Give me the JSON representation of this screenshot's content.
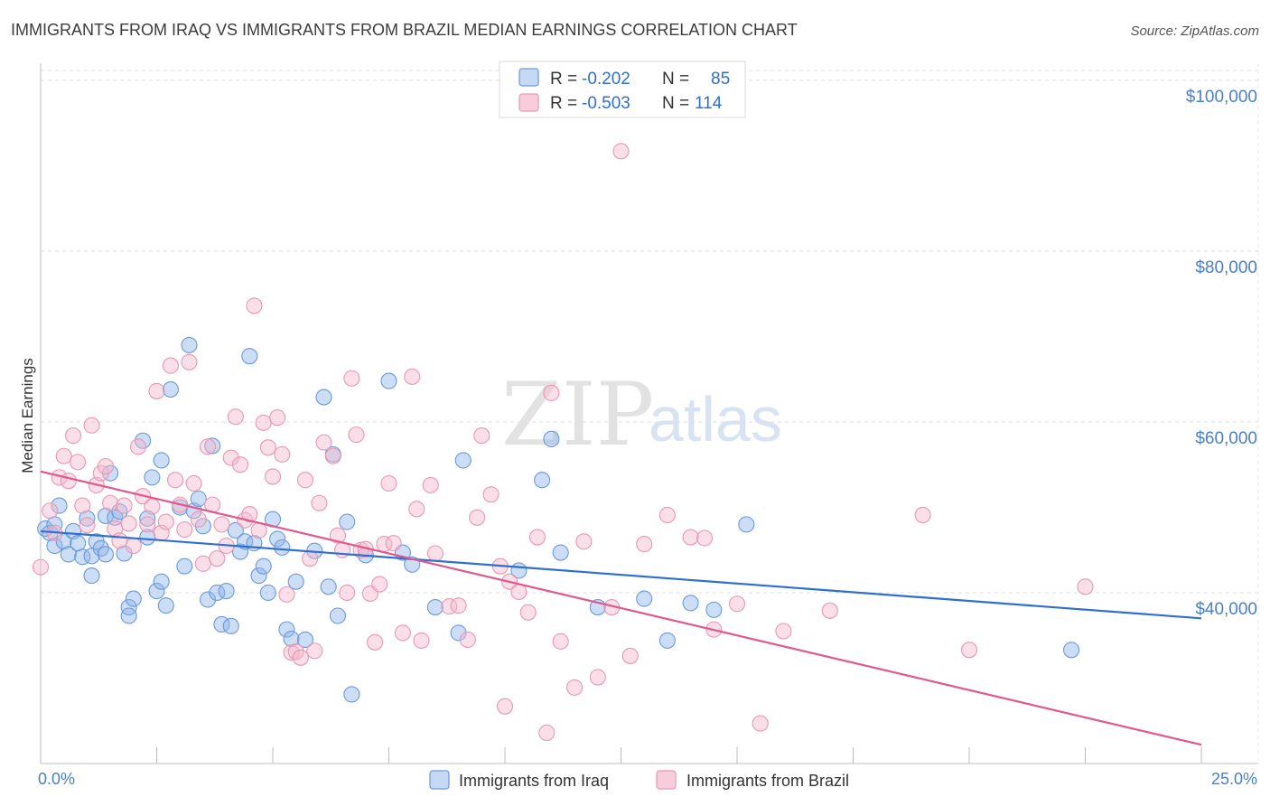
{
  "chart_data": {
    "type": "scatter",
    "title": "IMMIGRANTS FROM IRAQ VS IMMIGRANTS FROM BRAZIL MEDIAN EARNINGS CORRELATION CHART",
    "source": "Source: ZipAtlas.com",
    "watermark": {
      "part1": "ZIP",
      "part2": "atlas"
    },
    "ylabel": "Median Earnings",
    "xlim": [
      0,
      25
    ],
    "ylim": [
      20000,
      102000
    ],
    "x_tick_labels": [
      "0.0%",
      "25.0%"
    ],
    "y_ticks": [
      {
        "value": 40000,
        "label": "$40,000"
      },
      {
        "value": 60000,
        "label": "$60,000"
      },
      {
        "value": 80000,
        "label": "$80,000"
      },
      {
        "value": 100000,
        "label": "$100,000"
      }
    ],
    "legend": {
      "rows": [
        {
          "r_label": "R = ",
          "r_value": "-0.202",
          "n_label": "N = ",
          "n_value": "85"
        },
        {
          "r_label": "R = ",
          "r_value": "-0.503",
          "n_label": "N = ",
          "n_value": "114"
        }
      ]
    },
    "series": [
      {
        "name": "Immigrants from Iraq",
        "color": "#8fb4ea",
        "stroke": "#6c9ad8",
        "line_color": "#2f6fd0",
        "trend": {
          "x": [
            0,
            25
          ],
          "y": [
            47200,
            37000
          ]
        },
        "points": [
          [
            0.1,
            47500
          ],
          [
            0.2,
            47000
          ],
          [
            0.3,
            45500
          ],
          [
            0.3,
            48000
          ],
          [
            0.4,
            50200
          ],
          [
            0.5,
            46000
          ],
          [
            0.6,
            44500
          ],
          [
            0.7,
            47200
          ],
          [
            0.8,
            45800
          ],
          [
            0.9,
            44200
          ],
          [
            1.0,
            48700
          ],
          [
            1.1,
            44300
          ],
          [
            1.2,
            46000
          ],
          [
            1.3,
            45200
          ],
          [
            1.1,
            42000
          ],
          [
            1.4,
            44500
          ],
          [
            1.5,
            54000
          ],
          [
            1.4,
            49000
          ],
          [
            1.6,
            48800
          ],
          [
            1.7,
            49500
          ],
          [
            1.8,
            44600
          ],
          [
            1.9,
            38300
          ],
          [
            1.9,
            37300
          ],
          [
            2.0,
            39300
          ],
          [
            2.2,
            57800
          ],
          [
            2.3,
            48700
          ],
          [
            2.3,
            46500
          ],
          [
            2.4,
            53500
          ],
          [
            2.5,
            40200
          ],
          [
            2.6,
            41300
          ],
          [
            2.7,
            38500
          ],
          [
            2.6,
            55500
          ],
          [
            2.8,
            63800
          ],
          [
            3.0,
            50000
          ],
          [
            3.1,
            43100
          ],
          [
            3.2,
            69000
          ],
          [
            3.3,
            49600
          ],
          [
            3.4,
            51000
          ],
          [
            3.5,
            47800
          ],
          [
            3.6,
            39200
          ],
          [
            3.7,
            57200
          ],
          [
            3.8,
            40000
          ],
          [
            3.9,
            36300
          ],
          [
            4.0,
            40200
          ],
          [
            4.1,
            36100
          ],
          [
            4.2,
            47300
          ],
          [
            4.3,
            44800
          ],
          [
            4.4,
            46000
          ],
          [
            4.5,
            67700
          ],
          [
            4.6,
            45800
          ],
          [
            4.7,
            42000
          ],
          [
            4.8,
            43100
          ],
          [
            4.9,
            40000
          ],
          [
            5.0,
            48600
          ],
          [
            5.1,
            46300
          ],
          [
            5.2,
            45300
          ],
          [
            5.3,
            35700
          ],
          [
            5.4,
            34600
          ],
          [
            5.5,
            41300
          ],
          [
            5.7,
            34500
          ],
          [
            5.9,
            44900
          ],
          [
            6.1,
            62900
          ],
          [
            6.2,
            40700
          ],
          [
            6.3,
            56200
          ],
          [
            6.4,
            37300
          ],
          [
            6.6,
            48300
          ],
          [
            6.7,
            28100
          ],
          [
            7.0,
            44400
          ],
          [
            7.5,
            64800
          ],
          [
            7.8,
            44700
          ],
          [
            8.0,
            43300
          ],
          [
            8.5,
            38300
          ],
          [
            9.0,
            35300
          ],
          [
            9.1,
            55500
          ],
          [
            10.3,
            42600
          ],
          [
            10.8,
            53200
          ],
          [
            11.0,
            58000
          ],
          [
            11.2,
            44700
          ],
          [
            12.0,
            38300
          ],
          [
            13.0,
            39300
          ],
          [
            13.5,
            34400
          ],
          [
            14.0,
            38800
          ],
          [
            14.5,
            38000
          ],
          [
            15.2,
            48000
          ],
          [
            22.2,
            33300
          ]
        ]
      },
      {
        "name": "Immigrants from Brazil",
        "color": "#f5b8cc",
        "stroke": "#e897b2",
        "line_color": "#e0588c",
        "trend": {
          "x": [
            0,
            25
          ],
          "y": [
            54200,
            22200
          ]
        },
        "points": [
          [
            0.0,
            43000
          ],
          [
            0.2,
            49600
          ],
          [
            0.3,
            47000
          ],
          [
            0.4,
            53500
          ],
          [
            0.5,
            56000
          ],
          [
            0.6,
            53100
          ],
          [
            0.7,
            58400
          ],
          [
            0.8,
            55300
          ],
          [
            0.9,
            50200
          ],
          [
            1.0,
            47900
          ],
          [
            1.1,
            59600
          ],
          [
            1.2,
            52600
          ],
          [
            1.3,
            54000
          ],
          [
            1.4,
            54800
          ],
          [
            1.5,
            50500
          ],
          [
            1.6,
            47500
          ],
          [
            1.7,
            46100
          ],
          [
            1.8,
            50200
          ],
          [
            1.9,
            48100
          ],
          [
            2.0,
            45500
          ],
          [
            2.1,
            57100
          ],
          [
            2.2,
            51300
          ],
          [
            2.3,
            48000
          ],
          [
            2.4,
            50100
          ],
          [
            2.5,
            63600
          ],
          [
            2.6,
            47000
          ],
          [
            2.7,
            48300
          ],
          [
            2.8,
            66600
          ],
          [
            2.9,
            53200
          ],
          [
            3.0,
            50300
          ],
          [
            3.1,
            47400
          ],
          [
            3.2,
            67000
          ],
          [
            3.3,
            52800
          ],
          [
            3.4,
            48600
          ],
          [
            3.5,
            43400
          ],
          [
            3.6,
            57100
          ],
          [
            3.7,
            50300
          ],
          [
            3.8,
            44000
          ],
          [
            3.9,
            48000
          ],
          [
            4.0,
            45500
          ],
          [
            4.1,
            55800
          ],
          [
            4.2,
            60600
          ],
          [
            4.3,
            55000
          ],
          [
            4.4,
            48500
          ],
          [
            4.5,
            49200
          ],
          [
            4.6,
            73600
          ],
          [
            4.7,
            47300
          ],
          [
            4.8,
            59900
          ],
          [
            4.9,
            57000
          ],
          [
            5.0,
            53600
          ],
          [
            5.1,
            60500
          ],
          [
            5.2,
            56200
          ],
          [
            5.3,
            39800
          ],
          [
            5.4,
            33000
          ],
          [
            5.5,
            33100
          ],
          [
            5.6,
            32400
          ],
          [
            5.7,
            53200
          ],
          [
            5.8,
            44000
          ],
          [
            5.9,
            33200
          ],
          [
            6.0,
            50500
          ],
          [
            6.1,
            57600
          ],
          [
            6.3,
            56000
          ],
          [
            6.4,
            46700
          ],
          [
            6.5,
            45000
          ],
          [
            6.6,
            40000
          ],
          [
            6.7,
            65100
          ],
          [
            6.8,
            58500
          ],
          [
            6.9,
            45000
          ],
          [
            7.0,
            45100
          ],
          [
            7.1,
            39900
          ],
          [
            7.2,
            34200
          ],
          [
            7.3,
            41000
          ],
          [
            7.4,
            45700
          ],
          [
            7.5,
            52800
          ],
          [
            7.6,
            45800
          ],
          [
            7.8,
            35300
          ],
          [
            8.0,
            65300
          ],
          [
            8.1,
            49800
          ],
          [
            8.2,
            34400
          ],
          [
            8.4,
            52600
          ],
          [
            8.5,
            44600
          ],
          [
            8.8,
            38400
          ],
          [
            9.0,
            38500
          ],
          [
            9.2,
            34500
          ],
          [
            9.4,
            48800
          ],
          [
            9.5,
            58400
          ],
          [
            9.7,
            51500
          ],
          [
            9.9,
            43100
          ],
          [
            10.0,
            26700
          ],
          [
            10.1,
            41300
          ],
          [
            10.3,
            40100
          ],
          [
            10.5,
            37700
          ],
          [
            10.7,
            46500
          ],
          [
            10.9,
            23600
          ],
          [
            11.0,
            63400
          ],
          [
            11.2,
            34300
          ],
          [
            11.5,
            28900
          ],
          [
            11.7,
            46000
          ],
          [
            12.0,
            30100
          ],
          [
            12.3,
            38300
          ],
          [
            12.5,
            91700
          ],
          [
            12.7,
            32600
          ],
          [
            13.0,
            45700
          ],
          [
            13.5,
            49100
          ],
          [
            14.0,
            46500
          ],
          [
            14.3,
            46400
          ],
          [
            14.5,
            35700
          ],
          [
            15.0,
            38700
          ],
          [
            15.5,
            24700
          ],
          [
            16.0,
            35500
          ],
          [
            17.0,
            37900
          ],
          [
            19.0,
            49100
          ],
          [
            20.0,
            33300
          ],
          [
            22.5,
            40700
          ]
        ]
      }
    ]
  }
}
